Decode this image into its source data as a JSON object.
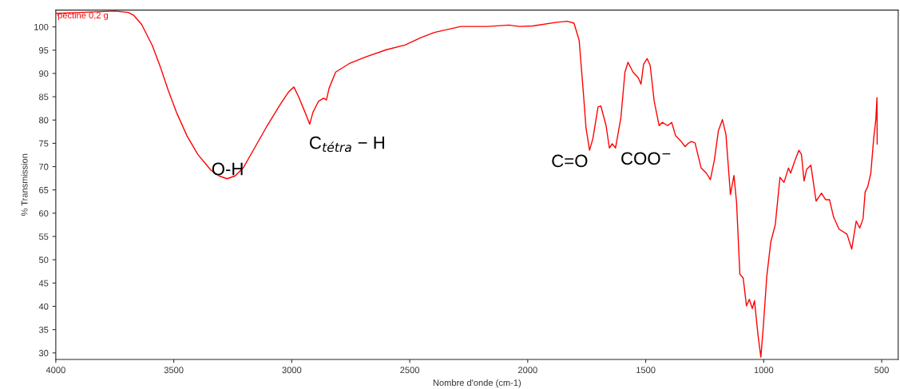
{
  "chart_data": {
    "type": "line",
    "xlabel": "Nombre d'onde (cm-1)",
    "ylabel": "% Transmission",
    "xlim": [
      4000,
      430
    ],
    "ylim": [
      28.6,
      103.6
    ],
    "xticks": [
      4000,
      3500,
      3000,
      2500,
      2000,
      1500,
      1000,
      500
    ],
    "yticks": [
      30,
      35,
      40,
      45,
      50,
      55,
      60,
      65,
      70,
      75,
      80,
      85,
      90,
      95,
      100
    ],
    "grid": false,
    "legend": "top left",
    "marker": "none",
    "line_style": "solid",
    "series": [
      {
        "name": "pectine 0,2 g",
        "color": "#ff0000",
        "x": [
          4000,
          3896,
          3749,
          3692,
          3670,
          3636,
          3591,
          3557,
          3523,
          3489,
          3444,
          3398,
          3342,
          3308,
          3274,
          3240,
          3206,
          3161,
          3104,
          3048,
          3014,
          2991,
          2972,
          2944,
          2924,
          2910,
          2887,
          2865,
          2853,
          2842,
          2814,
          2757,
          2690,
          2599,
          2520,
          2453,
          2396,
          2283,
          2170,
          2080,
          2035,
          1979,
          1877,
          1832,
          1804,
          1782,
          1764,
          1753,
          1738,
          1724,
          1702,
          1690,
          1668,
          1654,
          1642,
          1628,
          1605,
          1588,
          1575,
          1554,
          1532,
          1520,
          1509,
          1494,
          1481,
          1464,
          1443,
          1430,
          1407,
          1390,
          1373,
          1350,
          1333,
          1322,
          1307,
          1291,
          1265,
          1243,
          1226,
          1209,
          1192,
          1175,
          1160,
          1141,
          1126,
          1115,
          1101,
          1087,
          1073,
          1061,
          1048,
          1039,
          1024,
          1012,
          1001,
          987,
          970,
          951,
          931,
          914,
          895,
          886,
          867,
          851,
          840,
          829,
          818,
          800,
          778,
          755,
          738,
          721,
          704,
          681,
          647,
          627,
          608,
          593,
          579,
          570,
          559,
          546,
          534,
          525,
          520,
          519
        ],
        "values": [
          102.9,
          103.1,
          103.4,
          103.1,
          102.5,
          100.5,
          96.0,
          91.4,
          86.3,
          81.7,
          76.6,
          72.6,
          69.2,
          68.0,
          67.4,
          68.0,
          69.7,
          73.7,
          78.8,
          83.4,
          86.0,
          87.1,
          85.1,
          81.7,
          79.1,
          81.7,
          84.0,
          84.7,
          84.3,
          86.8,
          90.3,
          92.1,
          93.5,
          95.1,
          96.1,
          97.7,
          98.8,
          100.1,
          100.1,
          100.4,
          100.1,
          100.2,
          101.0,
          101.2,
          100.8,
          97.1,
          85.7,
          78.3,
          73.5,
          76.0,
          82.8,
          83.0,
          78.8,
          74.0,
          74.9,
          74.0,
          80.6,
          90.3,
          92.4,
          90.3,
          89.1,
          87.7,
          92.0,
          93.2,
          91.7,
          84.0,
          78.8,
          79.5,
          78.8,
          79.5,
          76.6,
          75.4,
          74.3,
          74.9,
          75.4,
          75.1,
          69.7,
          68.6,
          67.2,
          71.4,
          77.7,
          80.1,
          76.9,
          64.0,
          68.1,
          62.3,
          46.9,
          46.1,
          40.1,
          41.5,
          39.5,
          41.2,
          33.8,
          29.1,
          36.1,
          46.4,
          53.8,
          57.5,
          67.7,
          66.6,
          69.7,
          68.6,
          71.4,
          73.5,
          72.6,
          66.9,
          69.4,
          70.3,
          62.6,
          64.3,
          62.9,
          62.9,
          59.2,
          56.6,
          55.5,
          52.3,
          58.3,
          56.8,
          58.8,
          64.6,
          65.7,
          68.6,
          76.0,
          80.0,
          84.8,
          74.8
        ]
      }
    ],
    "annotations": [
      "O-H",
      "C$_{tétra}$ − H",
      "C=O",
      "COO$^{−}$"
    ]
  }
}
